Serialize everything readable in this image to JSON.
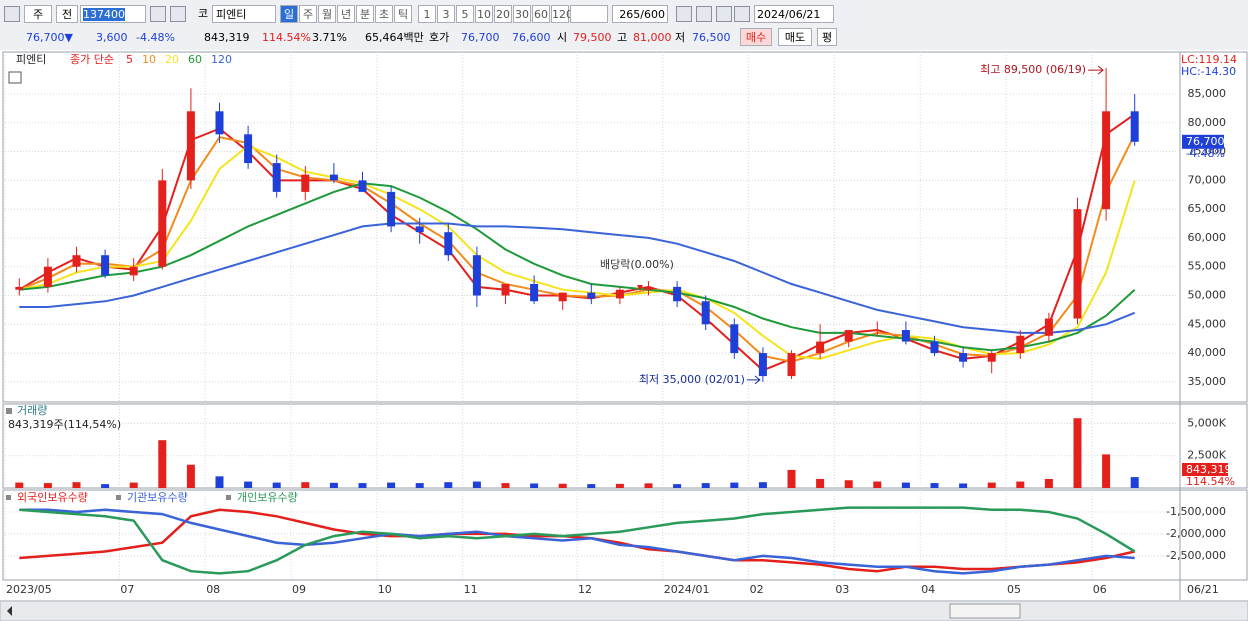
{
  "toolbar": {
    "period_type": "주",
    "prev": "전",
    "code": "137400",
    "market": "코",
    "name": "피엔티",
    "intervals": [
      "일",
      "주",
      "월",
      "년",
      "분",
      "초",
      "틱"
    ],
    "counts": [
      "1",
      "3",
      "5",
      "10",
      "20",
      "30",
      "60",
      "120"
    ],
    "shown": "265",
    "total": "/600",
    "date": "2024/06/21"
  },
  "info": {
    "price": "76,700▼",
    "change": "3,600",
    "change_pct": "-4.48%",
    "volume": "843,319",
    "volume_pct": "114.54%",
    "turnover": "3.71%",
    "amount": "65,464백만",
    "quote_label": "호가",
    "ask": "76,700",
    "bid": "76,600",
    "open_label": "시",
    "open": "79,500",
    "high_label": "고",
    "high": "81,000",
    "low_label": "저",
    "low": "76,500",
    "buy": "매수",
    "sell": "매도",
    "avg": "평"
  },
  "chart_data": [
    {
      "type": "candlestick",
      "title": "피엔티",
      "legend_prefix": "종가 단순",
      "categories": [
        "2023/05",
        null,
        null,
        null,
        "07",
        null,
        null,
        "08",
        null,
        null,
        "09",
        null,
        null,
        "10",
        null,
        null,
        "11",
        null,
        null,
        null,
        "12",
        null,
        null,
        "2024/01",
        null,
        null,
        "02",
        null,
        null,
        "03",
        null,
        null,
        "04",
        null,
        null,
        "05",
        null,
        null,
        "06",
        null
      ],
      "open": [
        51000,
        51500,
        55000,
        57000,
        53500,
        55000,
        70000,
        82000,
        78000,
        73000,
        68000,
        71000,
        70000,
        68000,
        62000,
        61000,
        57000,
        50000,
        52000,
        49000,
        50500,
        49500,
        51000,
        51500,
        49000,
        45000,
        40000,
        36000,
        40000,
        42000,
        44000,
        44000,
        42000,
        40000,
        38500,
        40000,
        43000,
        46000,
        65000,
        82000
      ],
      "high": [
        53000,
        56500,
        58500,
        58000,
        56500,
        72000,
        86000,
        83500,
        79500,
        74500,
        72500,
        73000,
        71500,
        69000,
        63500,
        62500,
        58500,
        52000,
        53500,
        50500,
        52000,
        51500,
        52500,
        52500,
        50000,
        46000,
        41000,
        40500,
        45000,
        44000,
        45500,
        45500,
        43000,
        41000,
        40500,
        44000,
        47000,
        67000,
        89500,
        85000
      ],
      "low": [
        50000,
        50500,
        54000,
        53000,
        52500,
        54500,
        68500,
        76500,
        72000,
        67000,
        66500,
        69500,
        68000,
        61000,
        59000,
        56000,
        48000,
        48500,
        48500,
        47500,
        48500,
        48500,
        50000,
        48000,
        44000,
        39000,
        35000,
        35500,
        39000,
        41000,
        43000,
        41500,
        39500,
        37500,
        36500,
        39000,
        42000,
        45000,
        63000,
        76000
      ],
      "close": [
        51500,
        55000,
        57000,
        53500,
        55000,
        70000,
        82000,
        78000,
        73000,
        68000,
        71000,
        70000,
        68000,
        62000,
        61000,
        57000,
        50000,
        52000,
        49000,
        50500,
        49500,
        51000,
        51500,
        49000,
        45000,
        40000,
        36000,
        40000,
        42000,
        44000,
        44000,
        42000,
        40000,
        38500,
        40000,
        43000,
        46000,
        65000,
        82000,
        76700
      ],
      "up_color": "#e3201c",
      "down_color": "#1e40d8",
      "series": [
        {
          "name": "5",
          "color": "#e3201c",
          "values": [
            51000,
            54000,
            56500,
            55000,
            54500,
            62000,
            77000,
            79000,
            75000,
            70000,
            70000,
            70000,
            68500,
            64000,
            61000,
            58000,
            51500,
            51000,
            50000,
            50000,
            49500,
            50500,
            51500,
            50000,
            46000,
            41500,
            37000,
            39000,
            41500,
            43500,
            44000,
            42500,
            40500,
            39000,
            39500,
            42000,
            45000,
            58000,
            78000,
            81500
          ]
        },
        {
          "name": "10",
          "color": "#f28c1e",
          "values": [
            51000,
            53000,
            55500,
            55500,
            55000,
            58000,
            70000,
            77500,
            76500,
            72000,
            70500,
            70000,
            69000,
            66000,
            62500,
            59500,
            54000,
            52000,
            51000,
            50000,
            49800,
            50000,
            51000,
            50800,
            48000,
            44000,
            39500,
            38500,
            40000,
            42000,
            43500,
            43000,
            41500,
            39800,
            39500,
            41000,
            43500,
            50000,
            68000,
            78000
          ]
        },
        {
          "name": "20",
          "color": "#f5e41c",
          "values": [
            51000,
            52000,
            54000,
            55000,
            55000,
            56000,
            63000,
            72000,
            76000,
            74000,
            71500,
            70500,
            69500,
            67500,
            65000,
            62000,
            57000,
            54000,
            52500,
            51000,
            50500,
            50000,
            50500,
            51000,
            49500,
            47000,
            43000,
            39500,
            39000,
            40500,
            42000,
            43000,
            42500,
            41000,
            39800,
            40000,
            41500,
            44500,
            54000,
            70000
          ]
        },
        {
          "name": "60",
          "color": "#1f9a3a",
          "values": [
            51000,
            51500,
            52500,
            53500,
            54000,
            55000,
            57000,
            59500,
            62000,
            64000,
            66000,
            68000,
            69500,
            69000,
            67000,
            64500,
            61500,
            58000,
            55500,
            53500,
            52000,
            51500,
            51000,
            50500,
            49500,
            48000,
            46000,
            44500,
            43500,
            43500,
            43000,
            42500,
            42000,
            41000,
            40500,
            41000,
            42000,
            43500,
            46500,
            51000
          ]
        },
        {
          "name": "120",
          "color": "#3a63d8",
          "values": [
            48000,
            48000,
            48500,
            49000,
            50000,
            51500,
            53000,
            54500,
            56000,
            57500,
            59000,
            60500,
            62000,
            62500,
            62500,
            62500,
            62000,
            62000,
            61800,
            61500,
            61000,
            60500,
            60000,
            59000,
            57500,
            56000,
            54000,
            52000,
            50500,
            49000,
            47500,
            46500,
            45500,
            44500,
            44000,
            43500,
            43500,
            44000,
            45000,
            47000
          ]
        }
      ],
      "ylim": [
        31500,
        92300
      ],
      "yticks": [
        {
          "value": 35000,
          "label": "35,000"
        },
        {
          "value": 40000,
          "label": "40,000"
        },
        {
          "value": 45000,
          "label": "45,000"
        },
        {
          "value": 50000,
          "label": "50,000"
        },
        {
          "value": 55000,
          "label": "55,000"
        },
        {
          "value": 60000,
          "label": "60,000"
        },
        {
          "value": 65000,
          "label": "65,000"
        },
        {
          "value": 70000,
          "label": "70,000"
        },
        {
          "value": 75000,
          "label": "75,000"
        },
        {
          "value": 80000,
          "label": "80,000"
        },
        {
          "value": 85000,
          "label": "85,000"
        }
      ],
      "high_note": "최고 89,500 (06/19)",
      "low_note": "최저 35,000 (02/01)",
      "dividend_note": "배당락(0.00%)",
      "lc": "LC:119.14",
      "hc": "HC:-14.30",
      "last_price": {
        "value": 76700,
        "label": "76,700"
      },
      "last_change": "-4.48%",
      "last_date": "06/21"
    },
    {
      "type": "bar",
      "title": "거래량",
      "subtitle": "843,319주(114,54%)",
      "values": [
        420,
        380,
        450,
        300,
        420,
        3700,
        1800,
        900,
        500,
        420,
        450,
        400,
        380,
        420,
        380,
        450,
        500,
        380,
        350,
        330,
        300,
        320,
        360,
        300,
        380,
        420,
        450,
        1400,
        700,
        600,
        500,
        420,
        380,
        350,
        420,
        500,
        700,
        5400,
        2600,
        843.319
      ],
      "ylim": [
        0,
        6500
      ],
      "yticks": [
        {
          "value": 2500,
          "label": "2,500K"
        },
        {
          "value": 5000,
          "label": "5,000K"
        }
      ],
      "last_volume": "843,319",
      "last_volume_pct": "114.54%"
    },
    {
      "type": "line",
      "series": [
        {
          "name": "외국인보유수량",
          "color": "#e3201c",
          "values": [
            -2550000,
            -2500000,
            -2450000,
            -2400000,
            -2300000,
            -2200000,
            -1600000,
            -1450000,
            -1500000,
            -1600000,
            -1750000,
            -1900000,
            -2000000,
            -2050000,
            -2050000,
            -2000000,
            -2000000,
            -2000000,
            -2050000,
            -2050000,
            -2100000,
            -2200000,
            -2350000,
            -2400000,
            -2500000,
            -2600000,
            -2600000,
            -2650000,
            -2700000,
            -2800000,
            -2850000,
            -2750000,
            -2750000,
            -2800000,
            -2800000,
            -2750000,
            -2700000,
            -2650000,
            -2550000,
            -2400000
          ]
        },
        {
          "name": "기관보유수량",
          "color": "#3a63d8",
          "values": [
            -1450000,
            -1450000,
            -1500000,
            -1450000,
            -1500000,
            -1550000,
            -1750000,
            -1900000,
            -2050000,
            -2200000,
            -2250000,
            -2200000,
            -2100000,
            -2000000,
            -2050000,
            -2000000,
            -1950000,
            -2050000,
            -2100000,
            -2150000,
            -2100000,
            -2250000,
            -2300000,
            -2400000,
            -2500000,
            -2600000,
            -2500000,
            -2550000,
            -2650000,
            -2700000,
            -2750000,
            -2750000,
            -2850000,
            -2900000,
            -2850000,
            -2750000,
            -2700000,
            -2600000,
            -2500000,
            -2550000
          ]
        },
        {
          "name": "개인보유수량",
          "color": "#2a9a5a",
          "values": [
            -1450000,
            -1500000,
            -1550000,
            -1600000,
            -1700000,
            -2600000,
            -2850000,
            -2900000,
            -2850000,
            -2600000,
            -2250000,
            -2050000,
            -1950000,
            -2000000,
            -2100000,
            -2050000,
            -2100000,
            -2050000,
            -2000000,
            -2050000,
            -2000000,
            -1950000,
            -1850000,
            -1750000,
            -1700000,
            -1650000,
            -1550000,
            -1500000,
            -1450000,
            -1400000,
            -1400000,
            -1400000,
            -1400000,
            -1400000,
            -1450000,
            -1450000,
            -1500000,
            -1650000,
            -2000000,
            -2400000
          ]
        }
      ],
      "ylim": [
        -3050000,
        -1000000
      ],
      "yticks": [
        {
          "value": -2500000,
          "label": "-2,500,000"
        },
        {
          "value": -2000000,
          "label": "-2,000,000"
        },
        {
          "value": -1500000,
          "label": "-1,500,000"
        }
      ]
    }
  ]
}
